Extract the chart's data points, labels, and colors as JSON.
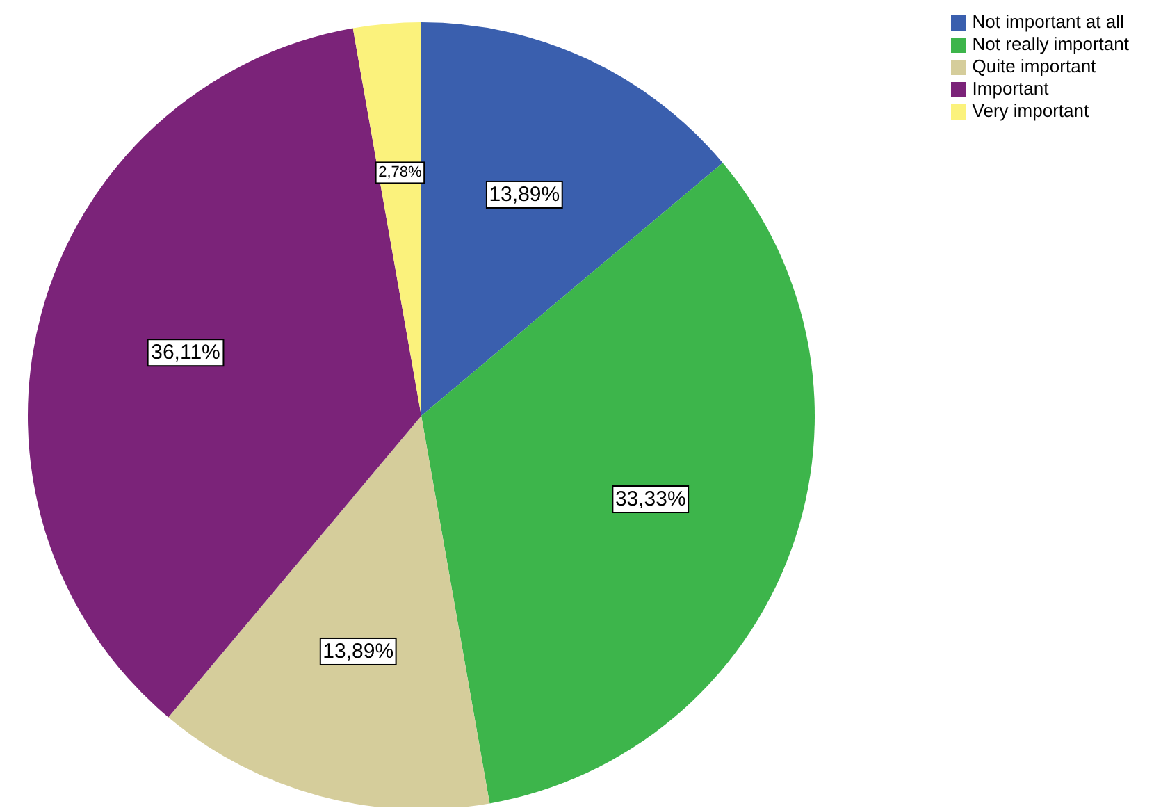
{
  "chart_data": {
    "type": "pie",
    "categories": [
      "Not important at all",
      "Not really important",
      "Quite important",
      "Important",
      "Very important"
    ],
    "values": [
      13.89,
      33.33,
      13.89,
      36.11,
      2.78
    ],
    "value_labels": [
      "13,89%",
      "33,33%",
      "13,89%",
      "36,11%",
      "2,78%"
    ],
    "colors": [
      "#3a5fae",
      "#3db54b",
      "#d5cd9b",
      "#7b2379",
      "#fbf27c"
    ],
    "legend": "top right"
  }
}
